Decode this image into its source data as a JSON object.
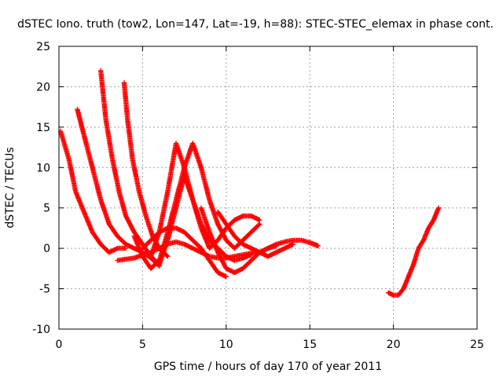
{
  "chart_data": {
    "type": "scatter",
    "title": "dSTEC Iono. truth (tow2, Lon=147, Lat=-19, h=88): STEC-STEC_elemax in phase cont.",
    "xlabel": "GPS time / hours of day 170 of year 2011",
    "ylabel": "dSTEC  / TECUs",
    "xlim": [
      0,
      25
    ],
    "ylim": [
      -10,
      25
    ],
    "xticks": [
      0,
      5,
      10,
      15,
      20,
      25
    ],
    "yticks": [
      -10,
      -5,
      0,
      5,
      10,
      15,
      20,
      25
    ],
    "grid": true,
    "marker": "+",
    "color": "#ff0000",
    "series": [
      {
        "x": [
          0.1,
          0.6,
          1.0,
          1.5,
          2.0,
          2.5,
          3.0,
          3.5,
          4.0
        ],
        "y": [
          14.5,
          11,
          7,
          4.5,
          2,
          0.5,
          -0.5,
          0,
          0
        ]
      },
      {
        "x": [
          1.1,
          1.5,
          2.0,
          2.5,
          3.0,
          3.5,
          4.0,
          4.5,
          5.0,
          5.5,
          6.0
        ],
        "y": [
          17.2,
          14,
          10,
          6,
          3,
          1.5,
          0.5,
          0,
          -0.5,
          -1.2,
          -2.2
        ]
      },
      {
        "x": [
          2.5,
          2.8,
          3.2,
          3.6,
          4.0,
          4.5,
          5.0,
          5.5,
          6.0
        ],
        "y": [
          22,
          16,
          11,
          7,
          4,
          2,
          0.5,
          -1,
          -2
        ]
      },
      {
        "x": [
          3.9,
          4.1,
          4.4,
          4.8,
          5.2,
          5.6,
          6.0,
          6.5
        ],
        "y": [
          20.5,
          16,
          11,
          7,
          4,
          1.5,
          0,
          -1
        ]
      },
      {
        "x": [
          3.5,
          4.5,
          5.5,
          6.5,
          7.0,
          7.5,
          8.0,
          8.5,
          9.0,
          9.5,
          10.0,
          10.5,
          11.0,
          11.5,
          12.0,
          12.5,
          13.0,
          13.5,
          14.0,
          14.5,
          15.0,
          15.5
        ],
        "y": [
          -1.5,
          -1.2,
          -0.5,
          0.5,
          0.8,
          0.5,
          0,
          -0.5,
          -1,
          -1.2,
          -1.2,
          -1.0,
          -0.8,
          -0.6,
          -0.5,
          0,
          0.5,
          0.8,
          1.0,
          1.0,
          0.7,
          0.3
        ]
      },
      {
        "x": [
          4.5,
          5.0,
          5.5,
          6.0,
          6.5,
          7.0,
          7.5,
          8.0,
          8.5,
          9.0,
          9.5,
          10.0,
          10.5,
          11.0,
          11.5,
          12.0
        ],
        "y": [
          1.5,
          -1,
          -2.5,
          -1.5,
          2,
          6,
          10,
          13,
          10,
          6,
          3,
          1,
          0,
          1,
          2,
          3
        ]
      },
      {
        "x": [
          5.0,
          5.5,
          6.0,
          6.5,
          7.0,
          7.5,
          8.0,
          8.5,
          9.0,
          9.5,
          10.0
        ],
        "y": [
          0,
          1,
          2,
          2.5,
          2.5,
          2,
          1,
          0,
          -1.5,
          -3,
          -3.5
        ]
      },
      {
        "x": [
          5.5,
          6.0,
          6.5,
          7.0,
          7.5,
          8.0,
          8.5,
          9.0,
          9.5,
          10.0,
          10.5,
          11.0,
          11.5,
          12.0
        ],
        "y": [
          -1,
          2,
          7,
          13,
          10,
          6,
          2.5,
          0,
          1,
          2.5,
          3.5,
          4,
          4,
          3.5
        ]
      },
      {
        "x": [
          6.0,
          6.5,
          7.0,
          7.5,
          8.0,
          8.5,
          9.0,
          9.5,
          10.0,
          10.5,
          11.0,
          11.5
        ],
        "y": [
          -2,
          1,
          5,
          9,
          6,
          3,
          1,
          0,
          -1,
          -1.5,
          -1.2,
          -0.8
        ]
      },
      {
        "x": [
          8.5,
          9.0,
          9.5,
          10.0,
          10.5,
          11.0,
          11.5,
          12.0,
          12.5,
          13.0
        ],
        "y": [
          5,
          2,
          -0.5,
          -2.5,
          -3,
          -2.5,
          -1.5,
          -0.5,
          0,
          0.3
        ]
      },
      {
        "x": [
          9.5,
          10.0,
          10.5,
          11.0,
          11.5,
          12.0,
          12.5,
          13.0,
          13.5,
          14.0
        ],
        "y": [
          4.5,
          3,
          1.5,
          0.5,
          0,
          -0.5,
          -1,
          -0.5,
          0,
          0.5
        ]
      },
      {
        "x": [
          19.7,
          20.0,
          20.3,
          20.6,
          20.9,
          21.2,
          21.5,
          21.8,
          22.1,
          22.4,
          22.7
        ],
        "y": [
          -5.5,
          -5.8,
          -5.8,
          -5,
          -3.5,
          -2,
          0,
          1,
          2.5,
          3.5,
          5
        ]
      }
    ]
  }
}
